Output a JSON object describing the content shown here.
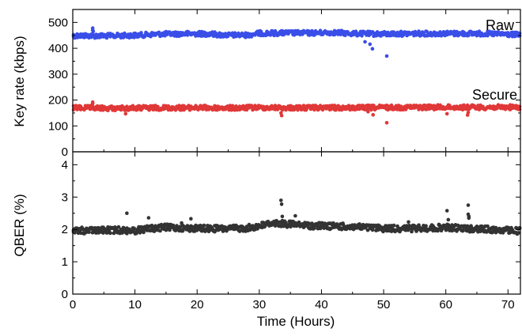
{
  "chart_data": [
    {
      "type": "scatter",
      "panel": "top",
      "title": "",
      "ylabel": "Key rate (kbps)",
      "xlim": [
        0,
        72
      ],
      "ylim": [
        0,
        550
      ],
      "yticks": [
        0,
        100,
        200,
        300,
        400,
        500
      ],
      "grid": false,
      "series": [
        {
          "name": "Raw",
          "color": "#3a4ee8",
          "baseline": [
            [
              0,
              449
            ],
            [
              6,
              448
            ],
            [
              10,
              450
            ],
            [
              14,
              455
            ],
            [
              18,
              456
            ],
            [
              22,
              456
            ],
            [
              24,
              451
            ],
            [
              28,
              451
            ],
            [
              30,
              458
            ],
            [
              34,
              459
            ],
            [
              38,
              459
            ],
            [
              42,
              461
            ],
            [
              45,
              457
            ],
            [
              50,
              455
            ],
            [
              55,
              457
            ],
            [
              60,
              457
            ],
            [
              65,
              457
            ],
            [
              70,
              454
            ],
            [
              72,
              452
            ]
          ],
          "outliers": [
            [
              3.2,
              478
            ],
            [
              3.2,
              470
            ],
            [
              3.3,
              465
            ],
            [
              47,
              425
            ],
            [
              47.8,
              416
            ],
            [
              48.2,
              398
            ],
            [
              50.5,
              370
            ]
          ]
        },
        {
          "name": "Secure",
          "color": "#e03838",
          "baseline": [
            [
              0,
              170
            ],
            [
              6,
              168
            ],
            [
              10,
              169
            ],
            [
              14,
              170
            ],
            [
              18,
              170
            ],
            [
              22,
              170
            ],
            [
              26,
              169
            ],
            [
              30,
              171
            ],
            [
              34,
              170
            ],
            [
              38,
              170
            ],
            [
              42,
              170
            ],
            [
              46,
              170
            ],
            [
              50,
              171
            ],
            [
              55,
              172
            ],
            [
              60,
              172
            ],
            [
              65,
              172
            ],
            [
              70,
              172
            ],
            [
              72,
              172
            ]
          ],
          "outliers": [
            [
              3.2,
              192
            ],
            [
              3.2,
              186
            ],
            [
              8.5,
              147
            ],
            [
              12.3,
              161
            ],
            [
              22.5,
              162
            ],
            [
              33.5,
              150
            ],
            [
              33.6,
              140
            ],
            [
              47.5,
              155
            ],
            [
              48.3,
              143
            ],
            [
              50.5,
              112
            ],
            [
              60.2,
              147
            ],
            [
              63.5,
              142
            ],
            [
              63.6,
              152
            ]
          ]
        }
      ]
    },
    {
      "type": "scatter",
      "panel": "bottom",
      "title": "",
      "xlabel": "Time (Hours)",
      "ylabel": "QBER (%)",
      "xlim": [
        0,
        72
      ],
      "ylim": [
        0,
        4.4
      ],
      "xticks": [
        0,
        10,
        20,
        30,
        40,
        50,
        60,
        70
      ],
      "yticks": [
        0,
        1,
        2,
        3,
        4
      ],
      "grid": false,
      "series": [
        {
          "color": "#333333",
          "baseline": [
            [
              0,
              1.96
            ],
            [
              4,
              1.97
            ],
            [
              8,
              1.98
            ],
            [
              10,
              1.96
            ],
            [
              12,
              2.02
            ],
            [
              15,
              2.06
            ],
            [
              20,
              2.03
            ],
            [
              25,
              2.02
            ],
            [
              28,
              2.04
            ],
            [
              30,
              2.1
            ],
            [
              32,
              2.2
            ],
            [
              34,
              2.17
            ],
            [
              38,
              2.12
            ],
            [
              42,
              2.1
            ],
            [
              46,
              2.07
            ],
            [
              50,
              2.03
            ],
            [
              55,
              2.03
            ],
            [
              60,
              2.06
            ],
            [
              63,
              2.03
            ],
            [
              66,
              2.01
            ],
            [
              70,
              1.97
            ],
            [
              72,
              1.95
            ]
          ],
          "outliers": [
            [
              8.7,
              2.5
            ],
            [
              12.2,
              2.36
            ],
            [
              17.5,
              2.2
            ],
            [
              19,
              2.33
            ],
            [
              33.5,
              2.9
            ],
            [
              33.6,
              2.78
            ],
            [
              33.7,
              2.4
            ],
            [
              35.8,
              2.42
            ],
            [
              54,
              2.23
            ],
            [
              60.2,
              2.58
            ],
            [
              60.4,
              2.3
            ],
            [
              63.6,
              2.75
            ],
            [
              63.6,
              2.47
            ],
            [
              63.7,
              2.4
            ],
            [
              63.7,
              2.35
            ]
          ]
        }
      ]
    }
  ]
}
